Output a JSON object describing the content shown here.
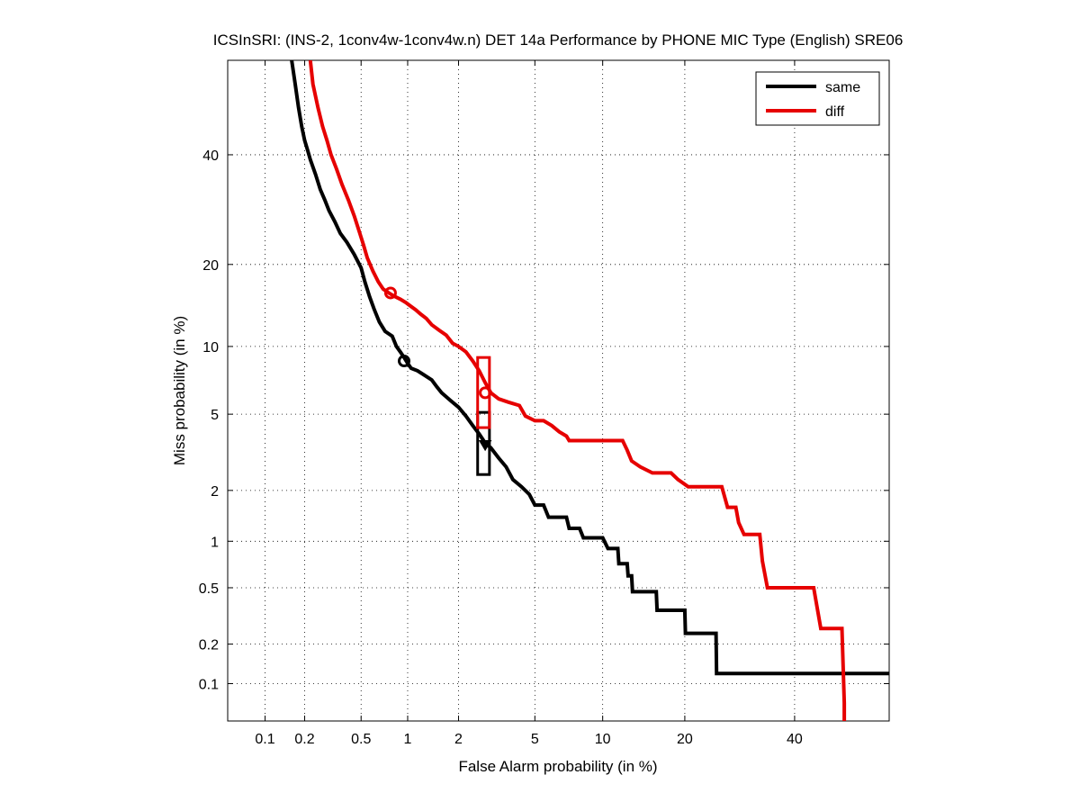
{
  "chart_data": {
    "type": "line",
    "subtype": "DET curve (normal-deviate axes)",
    "title": "ICSInSRI: (INS-2, 1conv4w-1conv4w.n) DET 14a Performance by PHONE MIC Type (English) SRE06",
    "xlabel": "False Alarm probability (in %)",
    "ylabel": "Miss probability (in %)",
    "xscale": "normal-deviate",
    "yscale": "normal-deviate",
    "xlim": [
      0.05,
      60
    ],
    "ylim": [
      0.05,
      60
    ],
    "xticks": [
      0.1,
      0.2,
      0.5,
      1,
      2,
      5,
      10,
      20,
      40
    ],
    "xtick_labels": [
      "0.1",
      "0.2",
      "0.5",
      "1",
      "2",
      "5",
      "10",
      "20",
      "40"
    ],
    "yticks": [
      0.1,
      0.2,
      0.5,
      1,
      2,
      5,
      10,
      20,
      40
    ],
    "ytick_labels": [
      "0.1",
      "0.2",
      "0.5",
      "1",
      "2",
      "5",
      "10",
      "20",
      "40"
    ],
    "grid": true,
    "legend_position": "top-right",
    "series": [
      {
        "name": "same",
        "color": "#000000",
        "points": [
          [
            0.16,
            60
          ],
          [
            0.17,
            55
          ],
          [
            0.18,
            50
          ],
          [
            0.19,
            46
          ],
          [
            0.2,
            43
          ],
          [
            0.21,
            41
          ],
          [
            0.22,
            39
          ],
          [
            0.24,
            36
          ],
          [
            0.26,
            33
          ],
          [
            0.28,
            31
          ],
          [
            0.3,
            29
          ],
          [
            0.33,
            27
          ],
          [
            0.36,
            25
          ],
          [
            0.4,
            23.5
          ],
          [
            0.45,
            21.5
          ],
          [
            0.5,
            19.5
          ],
          [
            0.53,
            17.5
          ],
          [
            0.57,
            15.5
          ],
          [
            0.61,
            14
          ],
          [
            0.66,
            12.5
          ],
          [
            0.72,
            11.5
          ],
          [
            0.8,
            11
          ],
          [
            0.85,
            10
          ],
          [
            0.9,
            9.5
          ],
          [
            0.95,
            9
          ],
          [
            1.0,
            8.5
          ],
          [
            1.05,
            8.1
          ],
          [
            1.15,
            7.9
          ],
          [
            1.25,
            7.6
          ],
          [
            1.4,
            7.2
          ],
          [
            1.5,
            6.7
          ],
          [
            1.6,
            6.3
          ],
          [
            1.8,
            5.8
          ],
          [
            2.0,
            5.4
          ],
          [
            2.2,
            4.9
          ],
          [
            2.4,
            4.4
          ],
          [
            2.6,
            4.0
          ],
          [
            2.8,
            3.6
          ],
          [
            3.0,
            3.4
          ],
          [
            3.3,
            3.0
          ],
          [
            3.6,
            2.7
          ],
          [
            3.9,
            2.3
          ],
          [
            4.3,
            2.1
          ],
          [
            4.7,
            1.9
          ],
          [
            5.0,
            1.65
          ],
          [
            5.5,
            1.65
          ],
          [
            5.8,
            1.4
          ],
          [
            7.0,
            1.4
          ],
          [
            7.2,
            1.2
          ],
          [
            8.0,
            1.2
          ],
          [
            8.3,
            1.05
          ],
          [
            10.0,
            1.05
          ],
          [
            10.5,
            0.9
          ],
          [
            11.5,
            0.9
          ],
          [
            11.6,
            0.72
          ],
          [
            12.5,
            0.72
          ],
          [
            12.6,
            0.6
          ],
          [
            13.0,
            0.6
          ],
          [
            13.1,
            0.47
          ],
          [
            16.0,
            0.47
          ],
          [
            16.1,
            0.35
          ],
          [
            20.0,
            0.35
          ],
          [
            20.1,
            0.24
          ],
          [
            25.0,
            0.24
          ],
          [
            25.1,
            0.12
          ],
          [
            60.0,
            0.12
          ]
        ]
      },
      {
        "name": "diff",
        "color": "#e60000",
        "points": [
          [
            0.22,
            60
          ],
          [
            0.23,
            55
          ],
          [
            0.25,
            50
          ],
          [
            0.27,
            46
          ],
          [
            0.29,
            43
          ],
          [
            0.31,
            40
          ],
          [
            0.34,
            37
          ],
          [
            0.37,
            34
          ],
          [
            0.41,
            31
          ],
          [
            0.45,
            28
          ],
          [
            0.49,
            25
          ],
          [
            0.52,
            23
          ],
          [
            0.55,
            21
          ],
          [
            0.6,
            19
          ],
          [
            0.65,
            17.5
          ],
          [
            0.7,
            16.5
          ],
          [
            0.76,
            16
          ],
          [
            0.82,
            15.6
          ],
          [
            0.9,
            15.2
          ],
          [
            0.97,
            14.8
          ],
          [
            1.05,
            14.3
          ],
          [
            1.12,
            13.9
          ],
          [
            1.2,
            13.4
          ],
          [
            1.3,
            12.9
          ],
          [
            1.4,
            12.2
          ],
          [
            1.55,
            11.6
          ],
          [
            1.7,
            11.1
          ],
          [
            1.85,
            10.3
          ],
          [
            2.0,
            10.0
          ],
          [
            2.2,
            9.5
          ],
          [
            2.4,
            8.7
          ],
          [
            2.6,
            7.9
          ],
          [
            2.8,
            7.0
          ],
          [
            3.0,
            6.3
          ],
          [
            3.3,
            5.9
          ],
          [
            3.7,
            5.7
          ],
          [
            4.2,
            5.5
          ],
          [
            4.5,
            4.9
          ],
          [
            5.0,
            4.65
          ],
          [
            5.5,
            4.65
          ],
          [
            6.0,
            4.4
          ],
          [
            6.5,
            4.1
          ],
          [
            7.0,
            3.9
          ],
          [
            7.2,
            3.7
          ],
          [
            12.0,
            3.7
          ],
          [
            12.5,
            3.3
          ],
          [
            13.0,
            2.9
          ],
          [
            14.0,
            2.7
          ],
          [
            15.5,
            2.5
          ],
          [
            18.0,
            2.5
          ],
          [
            19.0,
            2.3
          ],
          [
            20.5,
            2.1
          ],
          [
            26.0,
            2.1
          ],
          [
            27.0,
            1.6
          ],
          [
            28.5,
            1.6
          ],
          [
            29.0,
            1.3
          ],
          [
            30.0,
            1.1
          ],
          [
            33.0,
            1.1
          ],
          [
            33.5,
            0.75
          ],
          [
            34.5,
            0.5
          ],
          [
            44.0,
            0.5
          ],
          [
            45.5,
            0.26
          ],
          [
            50.0,
            0.26
          ],
          [
            50.5,
            0.07
          ],
          [
            50.5,
            0.05
          ]
        ]
      }
    ],
    "markers": [
      {
        "series": "same",
        "shape": "circle",
        "x": 0.95,
        "y": 8.7
      },
      {
        "series": "diff",
        "shape": "circle",
        "x": 0.78,
        "y": 16.0
      },
      {
        "series": "same",
        "shape": "triangle",
        "x": 2.8,
        "y": 3.5
      },
      {
        "series": "diff",
        "shape": "circle",
        "x": 2.8,
        "y": 6.3
      }
    ],
    "confidence_boxes": [
      {
        "series": "same",
        "x_range": [
          2.55,
          2.95
        ],
        "y_range": [
          2.45,
          5.1
        ]
      },
      {
        "series": "diff",
        "x_range": [
          2.55,
          2.95
        ],
        "y_range": [
          4.3,
          9.0
        ]
      }
    ],
    "legend": [
      {
        "name": "same",
        "color": "#000000"
      },
      {
        "name": "diff",
        "color": "#e60000"
      }
    ]
  }
}
